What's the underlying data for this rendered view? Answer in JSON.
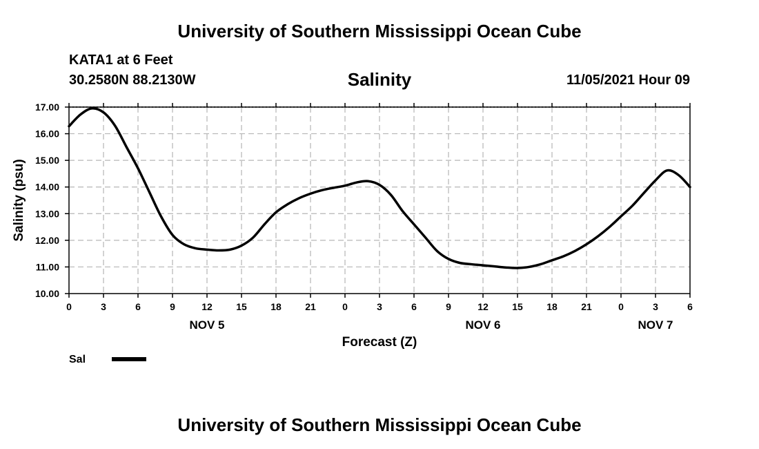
{
  "header": {
    "title": "University of Southern Mississippi Ocean Cube",
    "station": "KATA1 at 6 Feet",
    "coords": "30.2580N  88.2130W",
    "run_time": "11/05/2021 Hour 09"
  },
  "footer": {
    "title": "University of Southern Mississippi Ocean Cube"
  },
  "chart_data": {
    "type": "line",
    "title": "Salinity",
    "xlabel": "Forecast (Z)",
    "ylabel": "Salinity (psu)",
    "ylim": [
      10.0,
      17.0
    ],
    "y_ticks": [
      "10.00",
      "11.00",
      "12.00",
      "13.00",
      "14.00",
      "15.00",
      "16.00",
      "17.00"
    ],
    "x_range_hours": [
      0,
      54
    ],
    "x_ticks": [
      "0",
      "3",
      "6",
      "9",
      "12",
      "15",
      "18",
      "21",
      "0",
      "3",
      "6",
      "9",
      "12",
      "15",
      "18",
      "21",
      "0",
      "3",
      "6"
    ],
    "day_labels": [
      {
        "label": "NOV 5",
        "hour": 12
      },
      {
        "label": "NOV 6",
        "hour": 36
      },
      {
        "label": "NOV 7",
        "hour": 51
      }
    ],
    "grid": true,
    "legend_position": "bottom-left",
    "series": [
      {
        "name": "Sal",
        "color": "#000000",
        "x": [
          0,
          1,
          2,
          3,
          4,
          5,
          6,
          7,
          8,
          9,
          10,
          11,
          12,
          13,
          14,
          15,
          16,
          17,
          18,
          19,
          20,
          21,
          22,
          23,
          24,
          25,
          26,
          27,
          28,
          29,
          30,
          31,
          32,
          33,
          34,
          35,
          36,
          37,
          38,
          39,
          40,
          41,
          42,
          43,
          44,
          45,
          46,
          47,
          48,
          49,
          50,
          51,
          52,
          53,
          54
        ],
        "y": [
          16.28,
          16.72,
          16.95,
          16.8,
          16.3,
          15.5,
          14.7,
          13.8,
          12.9,
          12.2,
          11.85,
          11.7,
          11.65,
          11.62,
          11.65,
          11.8,
          12.1,
          12.6,
          13.05,
          13.35,
          13.58,
          13.75,
          13.88,
          13.97,
          14.05,
          14.17,
          14.22,
          14.08,
          13.7,
          13.1,
          12.6,
          12.1,
          11.6,
          11.3,
          11.15,
          11.1,
          11.06,
          11.02,
          10.98,
          10.96,
          11.0,
          11.1,
          11.25,
          11.4,
          11.6,
          11.85,
          12.15,
          12.5,
          12.9,
          13.3,
          13.78,
          14.25,
          14.62,
          14.45,
          14.0
        ]
      }
    ]
  }
}
